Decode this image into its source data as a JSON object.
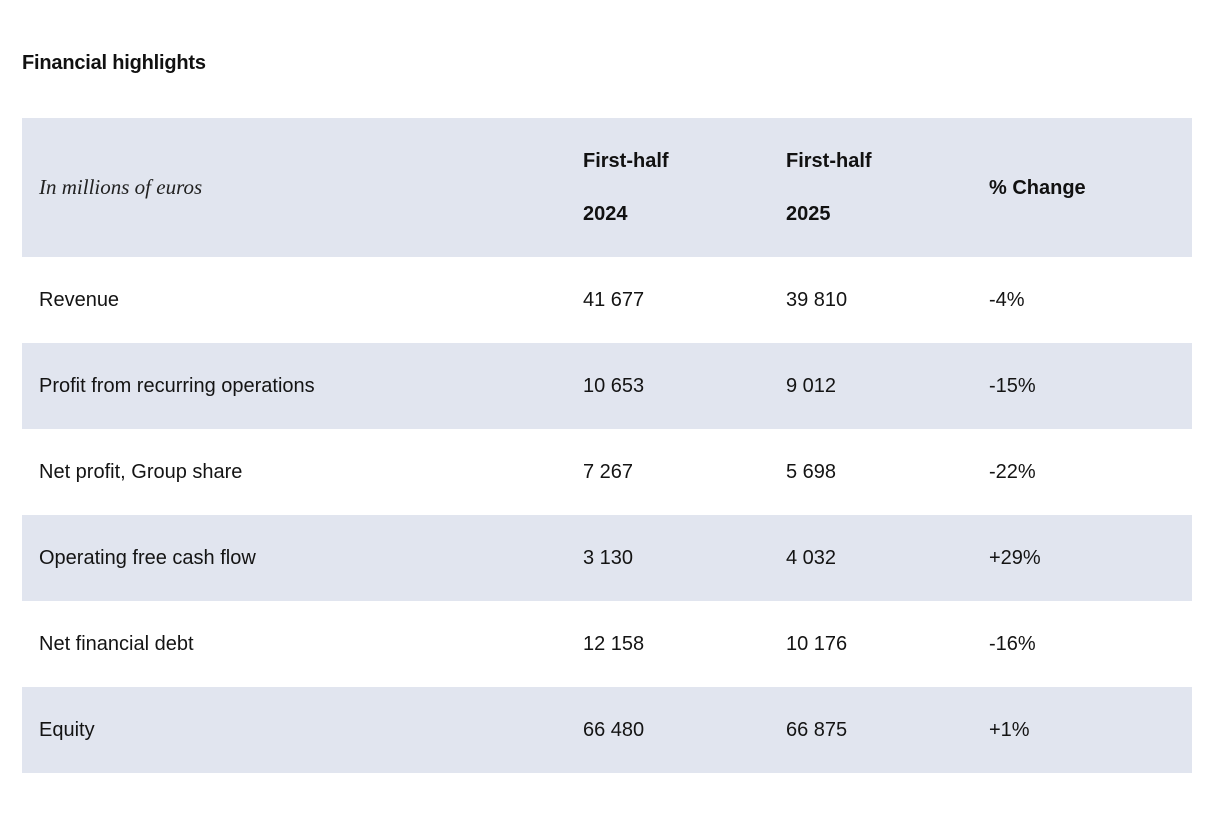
{
  "title": "Financial highlights",
  "table": {
    "unit_note": "In millions of euros",
    "columns": [
      {
        "line1": "First-half",
        "line2": "2024"
      },
      {
        "line1": "First-half",
        "line2": "2025"
      },
      {
        "line1": "% Change",
        "line2": ""
      }
    ],
    "rows": [
      {
        "label": "Revenue",
        "h1_2024": "41 677",
        "h1_2025": "39 810",
        "change": "-4%"
      },
      {
        "label": "Profit from recurring operations",
        "h1_2024": "10 653",
        "h1_2025": "9 012",
        "change": "-15%"
      },
      {
        "label": "Net profit, Group share",
        "h1_2024": "7 267",
        "h1_2025": "5 698",
        "change": "-22%"
      },
      {
        "label": "Operating free cash flow",
        "h1_2024": "3 130",
        "h1_2025": "4 032",
        "change": "+29%"
      },
      {
        "label": "Net financial debt",
        "h1_2024": "12 158",
        "h1_2025": "10 176",
        "change": "-16%"
      },
      {
        "label": "Equity",
        "h1_2024": "66 480",
        "h1_2025": "66 875",
        "change": "+1%"
      }
    ]
  },
  "colors": {
    "shaded_row": "#e1e5ef",
    "text": "#111111",
    "background": "#ffffff"
  }
}
